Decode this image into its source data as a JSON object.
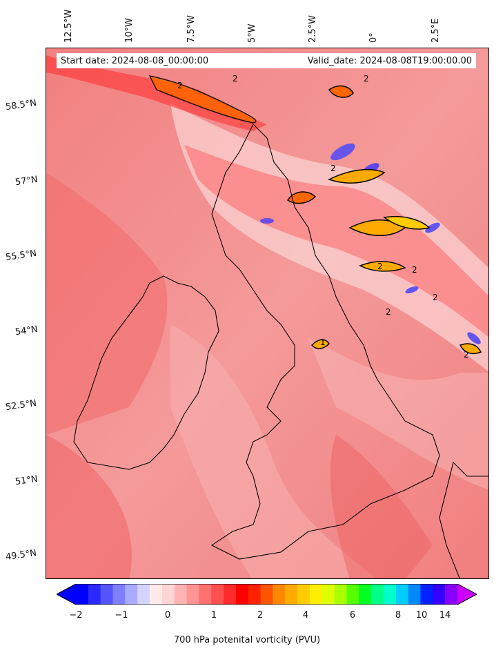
{
  "map": {
    "start_date": "Start date: 2024-08-08_00:00:00",
    "valid_date": "Valid_date: 2024-08-08T19:00:00.00",
    "longitude_labels": [
      "12.5°W",
      "10°W",
      "7.5°W",
      "5°W",
      "2.5°W",
      "0°",
      "2.5°E"
    ],
    "latitude_labels": [
      "58.5°N",
      "57°N",
      "55.5°N",
      "54°N",
      "52.5°N",
      "51°N",
      "49.5°N"
    ],
    "contour_label": "2",
    "contour_label_small": "1"
  },
  "colorbar": {
    "label": "700 hPa potenital vorticity (PVU)",
    "ticks": [
      "−2",
      "−1",
      "0",
      "1",
      "2",
      "4",
      "6",
      "8",
      "10",
      "14"
    ],
    "colors": [
      "#0000ff",
      "#2a2aff",
      "#5555ff",
      "#7f7fff",
      "#aaaaff",
      "#d4d4ff",
      "#ffeaea",
      "#ffd4d4",
      "#ffb4b4",
      "#ff9494",
      "#ff7070",
      "#ff5050",
      "#ff2a2a",
      "#ff0000",
      "#ff2200",
      "#ff5500",
      "#ff8800",
      "#ffaa00",
      "#ffcc00",
      "#ffee00",
      "#ddff00",
      "#aaff00",
      "#55ff00",
      "#00ff22",
      "#00ff88",
      "#00ffcc",
      "#00ccff",
      "#0088ff",
      "#0022ff",
      "#3300ff",
      "#8800ff"
    ],
    "min_arrow_color": "#0000ff",
    "max_arrow_color": "#cc00ff"
  }
}
